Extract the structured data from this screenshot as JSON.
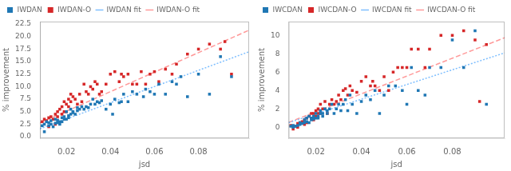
{
  "chart_data": [
    {
      "type": "scatter",
      "xlabel": "jsd",
      "ylabel": "% improvement",
      "xlim": [
        0.008,
        0.103
      ],
      "ylim": [
        -0.3,
        23.0
      ],
      "xticks": [
        0.02,
        0.04,
        0.06,
        0.08
      ],
      "yticks": [
        {
          "value": 0.0,
          "label": "0.0"
        },
        2.5,
        {
          "value": 5.0,
          "label": "5.0"
        },
        7.5,
        {
          "value": 10.0,
          "label": "10.0"
        },
        12.5,
        {
          "value": 15.0,
          "label": "15.0"
        },
        17.5,
        {
          "value": 20.0,
          "label": "20.0"
        },
        22.5
      ],
      "grid": false,
      "legend": "upper left",
      "series": [
        {
          "name": "IWDAN",
          "color": "#1f77b4",
          "marker": "square",
          "x": [
            0.009,
            0.01,
            0.01,
            0.011,
            0.012,
            0.012,
            0.013,
            0.013,
            0.014,
            0.015,
            0.015,
            0.016,
            0.016,
            0.017,
            0.017,
            0.018,
            0.018,
            0.019,
            0.019,
            0.02,
            0.02,
            0.021,
            0.021,
            0.022,
            0.022,
            0.023,
            0.023,
            0.024,
            0.025,
            0.025,
            0.026,
            0.027,
            0.028,
            0.029,
            0.03,
            0.031,
            0.032,
            0.033,
            0.034,
            0.035,
            0.036,
            0.038,
            0.04,
            0.041,
            0.042,
            0.044,
            0.045,
            0.046,
            0.048,
            0.05,
            0.052,
            0.055,
            0.056,
            0.058,
            0.06,
            0.062,
            0.065,
            0.068,
            0.07,
            0.072,
            0.075,
            0.08,
            0.085,
            0.09,
            0.095
          ],
          "values": [
            2.2,
            1.0,
            2.5,
            3.0,
            2.2,
            2.8,
            2.5,
            3.2,
            2.0,
            2.7,
            3.5,
            3.3,
            2.8,
            3.0,
            2.5,
            3.8,
            3.0,
            3.5,
            4.0,
            5.0,
            3.5,
            4.2,
            3.8,
            5.5,
            4.5,
            5.0,
            4.8,
            4.5,
            5.2,
            5.8,
            5.5,
            6.0,
            5.5,
            6.0,
            5.8,
            6.5,
            7.5,
            6.5,
            7.0,
            6.8,
            7.2,
            5.5,
            6.5,
            4.5,
            7.5,
            6.8,
            7.0,
            8.5,
            7.0,
            9.0,
            8.5,
            8.0,
            9.5,
            9.0,
            8.5,
            10.5,
            8.5,
            11.0,
            10.5,
            12.0,
            8.0,
            12.5,
            8.5,
            16.0,
            12.0
          ]
        },
        {
          "name": "IWDAN fit",
          "type": "line",
          "color": "#7fbfff",
          "line_style": "dotted",
          "x": [
            0.008,
            0.103
          ],
          "values": [
            1.596,
            16.986
          ]
        },
        {
          "name": "IWDAN-O",
          "color": "#d62728",
          "marker": "square",
          "x": [
            0.009,
            0.01,
            0.011,
            0.012,
            0.012,
            0.013,
            0.014,
            0.015,
            0.015,
            0.016,
            0.016,
            0.017,
            0.018,
            0.018,
            0.019,
            0.019,
            0.02,
            0.02,
            0.021,
            0.021,
            0.022,
            0.022,
            0.023,
            0.024,
            0.025,
            0.026,
            0.027,
            0.028,
            0.029,
            0.03,
            0.031,
            0.032,
            0.033,
            0.034,
            0.035,
            0.036,
            0.038,
            0.04,
            0.042,
            0.044,
            0.045,
            0.046,
            0.048,
            0.05,
            0.052,
            0.054,
            0.056,
            0.058,
            0.06,
            0.062,
            0.065,
            0.068,
            0.07,
            0.075,
            0.08,
            0.085,
            0.09,
            0.092,
            0.095
          ],
          "values": [
            3.0,
            3.5,
            3.2,
            3.8,
            2.0,
            4.0,
            3.5,
            4.5,
            2.5,
            5.0,
            4.0,
            5.5,
            4.5,
            6.0,
            5.0,
            7.0,
            6.5,
            5.0,
            7.5,
            6.0,
            8.5,
            7.0,
            8.0,
            7.5,
            6.5,
            8.5,
            7.0,
            10.5,
            9.0,
            8.5,
            10.0,
            9.5,
            11.0,
            10.5,
            8.5,
            9.0,
            10.5,
            12.5,
            13.0,
            11.0,
            12.5,
            12.0,
            12.5,
            10.5,
            10.5,
            13.0,
            10.5,
            12.5,
            13.0,
            11.0,
            13.5,
            12.5,
            14.5,
            16.5,
            17.5,
            18.5,
            17.5,
            19.0,
            12.5
          ]
        },
        {
          "name": "IWDAN-O fit",
          "type": "line",
          "color": "#ff9999",
          "line_style": "dashed",
          "x": [
            0.008,
            0.103
          ],
          "values": [
            2.76,
            21.285
          ]
        }
      ]
    },
    {
      "type": "scatter",
      "xlabel": "jsd",
      "ylabel": "% improvement",
      "xlim": [
        0.008,
        0.103
      ],
      "ylim": [
        -1.2,
        11.5
      ],
      "xticks": [
        0.02,
        0.04,
        0.06,
        0.08
      ],
      "yticks": [
        0,
        2,
        4,
        6,
        8,
        10
      ],
      "grid": false,
      "legend": "upper left",
      "series": [
        {
          "name": "IWCDAN",
          "color": "#1f77b4",
          "marker": "square",
          "x": [
            0.009,
            0.01,
            0.01,
            0.011,
            0.012,
            0.013,
            0.013,
            0.014,
            0.015,
            0.015,
            0.016,
            0.016,
            0.017,
            0.017,
            0.018,
            0.018,
            0.019,
            0.019,
            0.02,
            0.02,
            0.021,
            0.021,
            0.022,
            0.022,
            0.023,
            0.023,
            0.024,
            0.025,
            0.025,
            0.026,
            0.027,
            0.028,
            0.029,
            0.03,
            0.031,
            0.032,
            0.033,
            0.034,
            0.035,
            0.036,
            0.038,
            0.04,
            0.042,
            0.044,
            0.046,
            0.048,
            0.05,
            0.052,
            0.055,
            0.058,
            0.06,
            0.062,
            0.065,
            0.068,
            0.07,
            0.075,
            0.08,
            0.085,
            0.09,
            0.095
          ],
          "values": [
            0.1,
            0.2,
            0.0,
            0.1,
            0.2,
            0.3,
            0.5,
            0.4,
            0.5,
            0.8,
            0.6,
            1.0,
            0.5,
            1.2,
            0.8,
            1.0,
            0.9,
            1.2,
            1.0,
            1.5,
            1.2,
            1.0,
            1.5,
            1.8,
            1.5,
            1.2,
            2.0,
            1.5,
            1.8,
            2.0,
            2.5,
            1.5,
            2.0,
            2.5,
            1.8,
            2.5,
            3.0,
            1.8,
            3.5,
            2.5,
            1.5,
            2.8,
            3.5,
            3.0,
            4.0,
            1.5,
            3.5,
            4.5,
            4.5,
            4.0,
            2.5,
            6.5,
            4.0,
            3.5,
            6.5,
            6.5,
            9.5,
            6.5,
            10.5,
            2.5
          ]
        },
        {
          "name": "IWCDAN fit",
          "type": "line",
          "color": "#7fbfff",
          "line_style": "dotted",
          "x": [
            0.008,
            0.103
          ],
          "values": [
            0.49,
            8.09
          ]
        },
        {
          "name": "IWCDAN-O",
          "color": "#d62728",
          "marker": "square",
          "x": [
            0.009,
            0.01,
            0.011,
            0.012,
            0.012,
            0.013,
            0.014,
            0.015,
            0.015,
            0.016,
            0.016,
            0.017,
            0.018,
            0.018,
            0.019,
            0.019,
            0.02,
            0.02,
            0.021,
            0.021,
            0.022,
            0.022,
            0.023,
            0.024,
            0.025,
            0.026,
            0.027,
            0.028,
            0.029,
            0.03,
            0.031,
            0.032,
            0.033,
            0.034,
            0.035,
            0.036,
            0.038,
            0.04,
            0.042,
            0.044,
            0.045,
            0.046,
            0.048,
            0.05,
            0.052,
            0.054,
            0.056,
            0.058,
            0.06,
            0.062,
            0.065,
            0.068,
            0.07,
            0.075,
            0.08,
            0.085,
            0.09,
            0.092,
            0.095
          ],
          "values": [
            0.2,
            -0.2,
            0.1,
            0.4,
            0.0,
            0.5,
            0.6,
            0.3,
            0.8,
            1.0,
            0.5,
            1.2,
            1.0,
            1.5,
            0.8,
            1.5,
            1.2,
            1.8,
            2.0,
            1.5,
            1.5,
            2.5,
            2.0,
            2.8,
            1.5,
            2.5,
            3.0,
            2.5,
            2.8,
            3.5,
            3.0,
            4.0,
            4.2,
            3.5,
            4.5,
            4.0,
            3.8,
            5.0,
            5.5,
            4.5,
            5.0,
            4.5,
            4.0,
            5.5,
            4.0,
            6.0,
            6.5,
            6.5,
            6.5,
            8.5,
            8.5,
            6.5,
            8.5,
            10.0,
            10.0,
            10.5,
            9.5,
            2.8,
            9.0
          ]
        },
        {
          "name": "IWCDAN-O fit",
          "type": "line",
          "color": "#ff9999",
          "line_style": "dashed",
          "x": [
            0.008,
            0.103
          ],
          "values": [
            0.526,
            9.741
          ]
        }
      ]
    }
  ]
}
